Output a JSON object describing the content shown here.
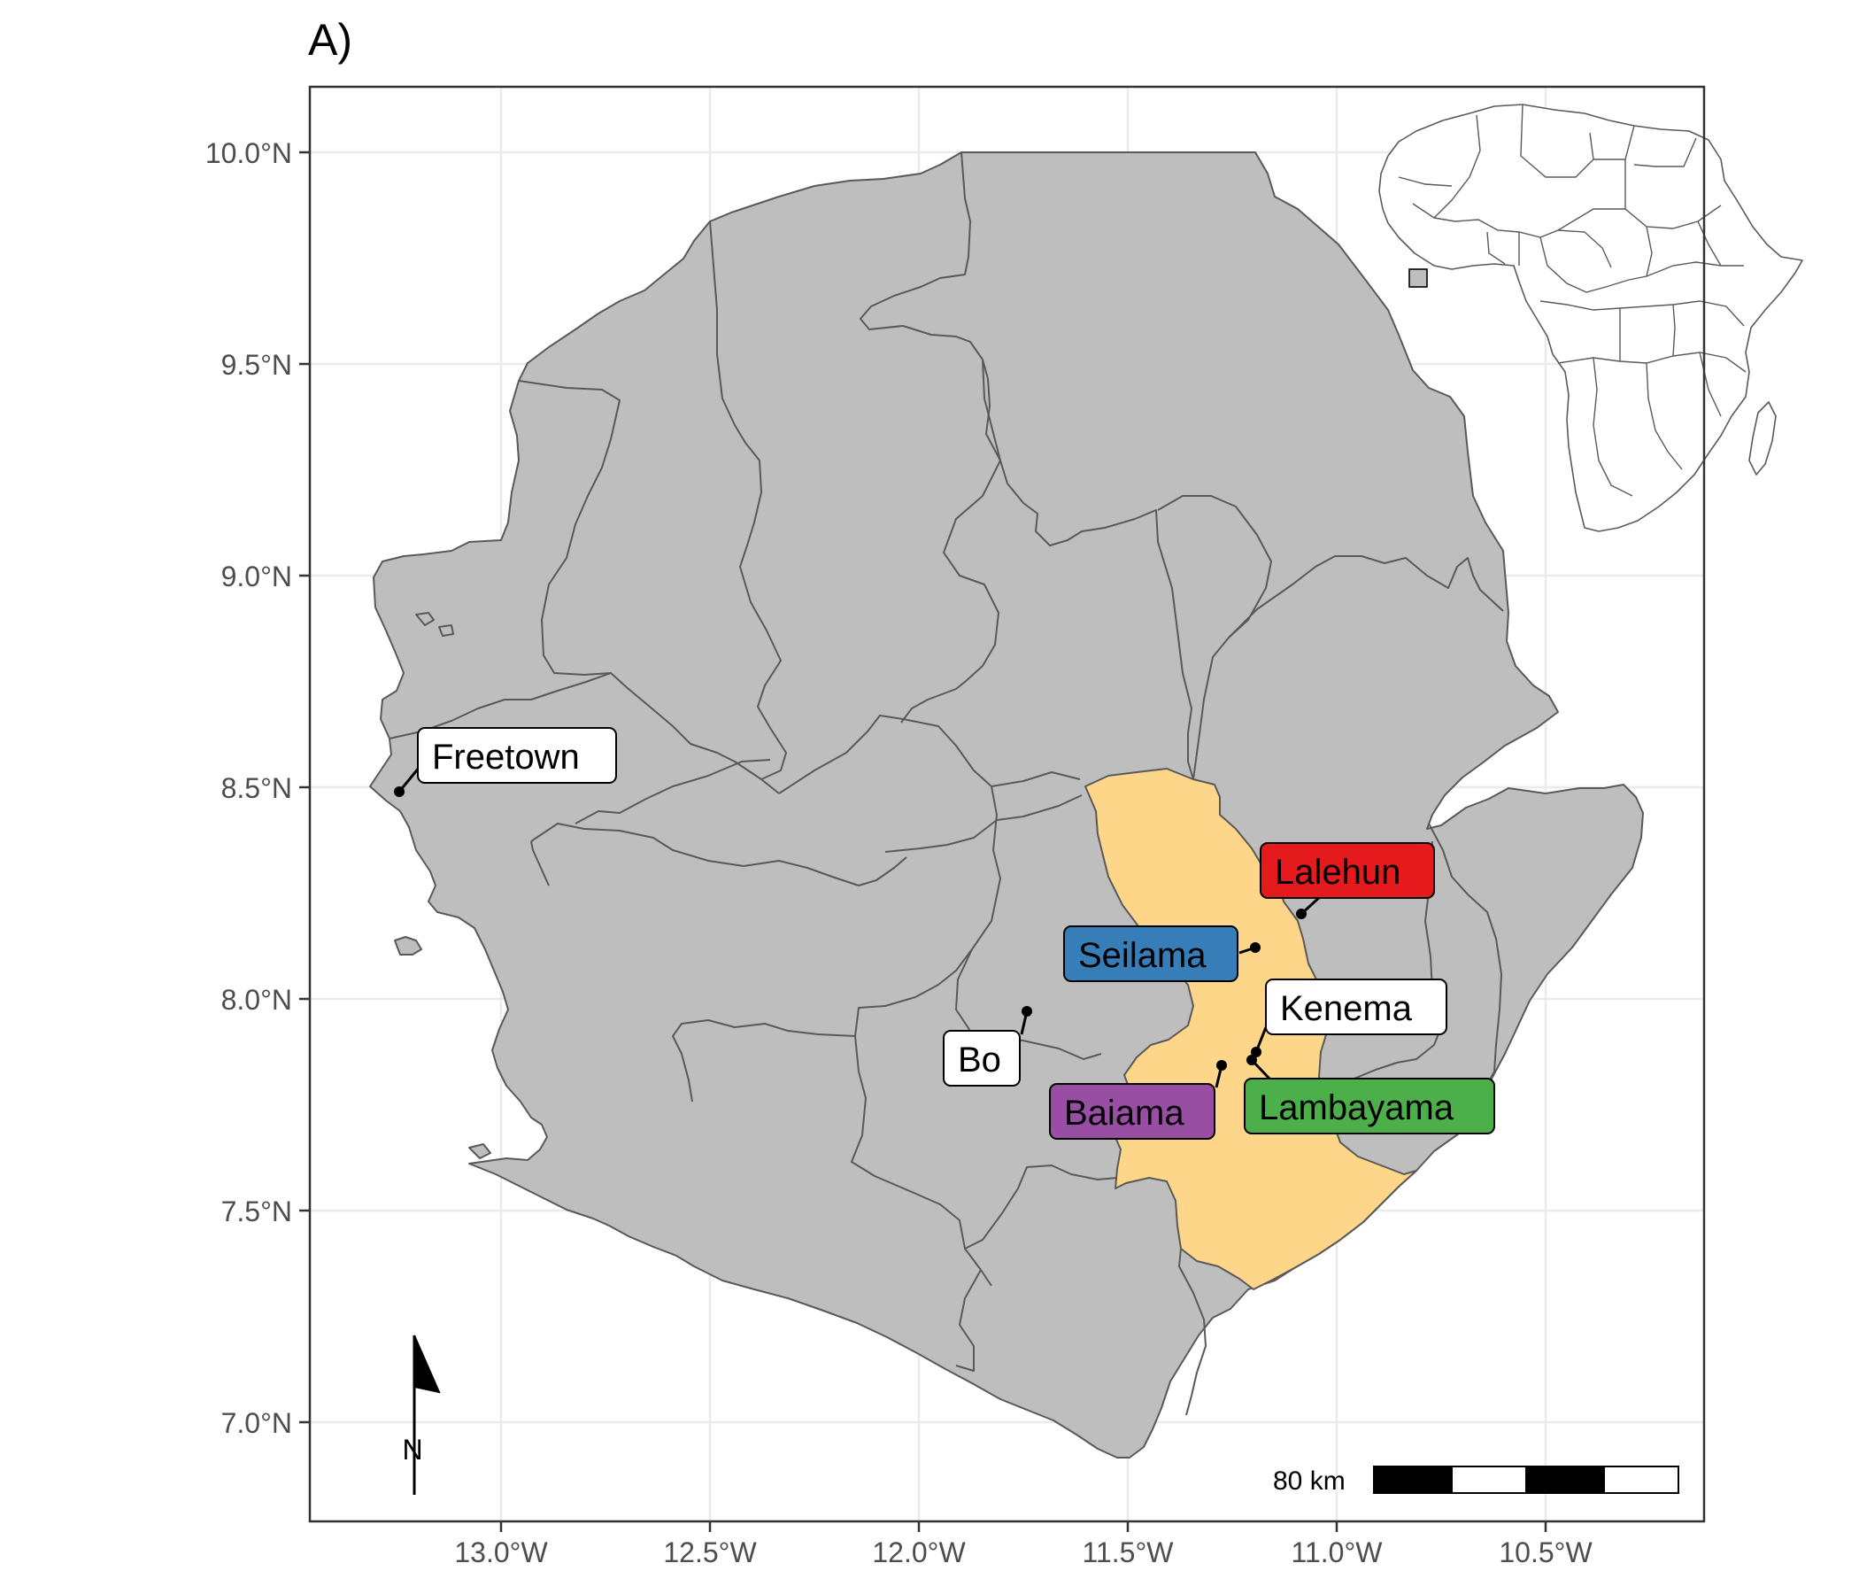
{
  "panel_title": "A)",
  "axes": {
    "x_ticks": [
      "13.0°W",
      "12.5°W",
      "12.0°W",
      "11.5°W",
      "11.0°W",
      "10.5°W"
    ],
    "y_ticks": [
      "10.0°N",
      "9.5°N",
      "9.0°N",
      "8.5°N",
      "8.0°N",
      "7.5°N",
      "7.0°N"
    ]
  },
  "colors": {
    "land": "#bebebe",
    "highlight_district": "#fed689",
    "lalehun": "#e41a1c",
    "seilama": "#377eb8",
    "baiama": "#984ea3",
    "lambayama": "#4daf4a",
    "town": "#ffffff"
  },
  "locations": [
    {
      "name": "Freetown",
      "lon": -13.23,
      "lat": 8.48,
      "fill": "#ffffff"
    },
    {
      "name": "Lalehun",
      "lon": -11.08,
      "lat": 8.2,
      "fill": "#e41a1c"
    },
    {
      "name": "Seilama",
      "lon": -11.19,
      "lat": 8.12,
      "fill": "#377eb8"
    },
    {
      "name": "Kenema",
      "lon": -11.19,
      "lat": 7.88,
      "fill": "#ffffff"
    },
    {
      "name": "Bo",
      "lon": -11.74,
      "lat": 7.96,
      "fill": "#ffffff"
    },
    {
      "name": "Baiama",
      "lon": -11.27,
      "lat": 7.84,
      "fill": "#984ea3"
    },
    {
      "name": "Lambayama",
      "lon": -11.2,
      "lat": 7.85,
      "fill": "#4daf4a"
    }
  ],
  "scale_bar": {
    "label": "80 km"
  },
  "north_arrow": {
    "label": "N"
  },
  "inset": {
    "name": "Africa locator map"
  }
}
